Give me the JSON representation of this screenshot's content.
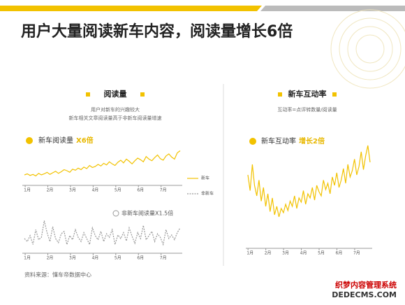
{
  "title": "用户大量阅读新车内容，阅读量增长6倍",
  "source": "资料来源：懂车帝数据中心",
  "watermark": {
    "line1": "织梦内容管理系统",
    "line2": "DEDECMS.COM"
  },
  "chart_data": [
    {
      "type": "line",
      "header": "阅读量",
      "subtitle": [
        "用户对新车的兴趣较大",
        "新车相关文章阅读量高于非新车阅读量增速"
      ],
      "annotations": {
        "top_label": "新车阅读量",
        "top_highlight": "X6倍",
        "bottom_label": "非新车阅读量X1.5倍"
      },
      "categories": [
        null,
        "1月",
        null,
        null,
        null,
        null,
        null,
        null,
        null,
        "2月",
        null,
        null,
        null,
        null,
        null,
        null,
        null,
        "3月",
        null,
        null,
        null,
        null,
        null,
        null,
        null,
        "4月",
        null,
        null,
        null,
        null,
        null,
        null,
        null,
        "5月",
        null,
        null,
        null,
        null,
        null,
        null,
        null,
        "6月",
        null,
        null,
        null,
        null,
        null,
        null,
        null,
        "7月",
        null,
        null,
        null,
        null,
        null,
        null
      ],
      "ylim": [
        0,
        100
      ],
      "series": [
        {
          "name": "新车",
          "color": "#f2c200",
          "values": [
            20,
            22,
            19,
            21,
            18,
            23,
            20,
            22,
            25,
            21,
            24,
            27,
            23,
            26,
            30,
            28,
            25,
            31,
            29,
            33,
            30,
            35,
            32,
            38,
            34,
            36,
            40,
            37,
            42,
            39,
            45,
            41,
            38,
            44,
            48,
            43,
            50,
            46,
            41,
            47,
            52,
            49,
            45,
            55,
            50,
            47,
            53,
            58,
            51,
            48,
            56,
            60,
            54,
            50,
            62,
            66
          ]
        },
        {
          "name": "非新车",
          "color": "#999999",
          "values": [
            40,
            35,
            45,
            30,
            55,
            38,
            42,
            70,
            50,
            35,
            60,
            40,
            33,
            48,
            52,
            30,
            45,
            38,
            55,
            42,
            35,
            50,
            40,
            30,
            58,
            45,
            38,
            52,
            35,
            48,
            42,
            55,
            30,
            46,
            40,
            50,
            36,
            58,
            44,
            32,
            50,
            40,
            62,
            38,
            45,
            52,
            35,
            48,
            42,
            30,
            55,
            40,
            46,
            38,
            50,
            58
          ]
        }
      ]
    },
    {
      "type": "line",
      "header": "新车互动率",
      "subtitle": [
        "互动率=点评转数量/阅读量"
      ],
      "annotations": {
        "top_label": "新车互动率",
        "top_highlight": "增长2倍"
      },
      "categories": [
        null,
        "1月",
        null,
        null,
        null,
        null,
        null,
        null,
        null,
        "2月",
        null,
        null,
        null,
        null,
        null,
        null,
        null,
        "3月",
        null,
        null,
        null,
        null,
        null,
        null,
        null,
        "4月",
        null,
        null,
        null,
        null,
        null,
        null,
        null,
        "5月",
        null,
        null,
        null,
        null,
        null,
        null,
        null,
        "6月",
        null,
        null,
        null,
        null,
        null,
        null,
        null,
        "7月",
        null,
        null,
        null,
        null,
        null,
        null
      ],
      "ylim": [
        0,
        100
      ],
      "series": [
        {
          "name": "新车互动率",
          "color": "#f2c200",
          "values": [
            60,
            45,
            70,
            50,
            40,
            55,
            35,
            48,
            30,
            42,
            25,
            38,
            22,
            30,
            20,
            28,
            24,
            32,
            26,
            35,
            30,
            40,
            28,
            38,
            34,
            45,
            32,
            42,
            38,
            48,
            36,
            50,
            44,
            40,
            55,
            46,
            52,
            42,
            58,
            50,
            62,
            48,
            55,
            66,
            52,
            70,
            58,
            64,
            75,
            60,
            68,
            82,
            65,
            78,
            88,
            72
          ]
        }
      ]
    }
  ]
}
